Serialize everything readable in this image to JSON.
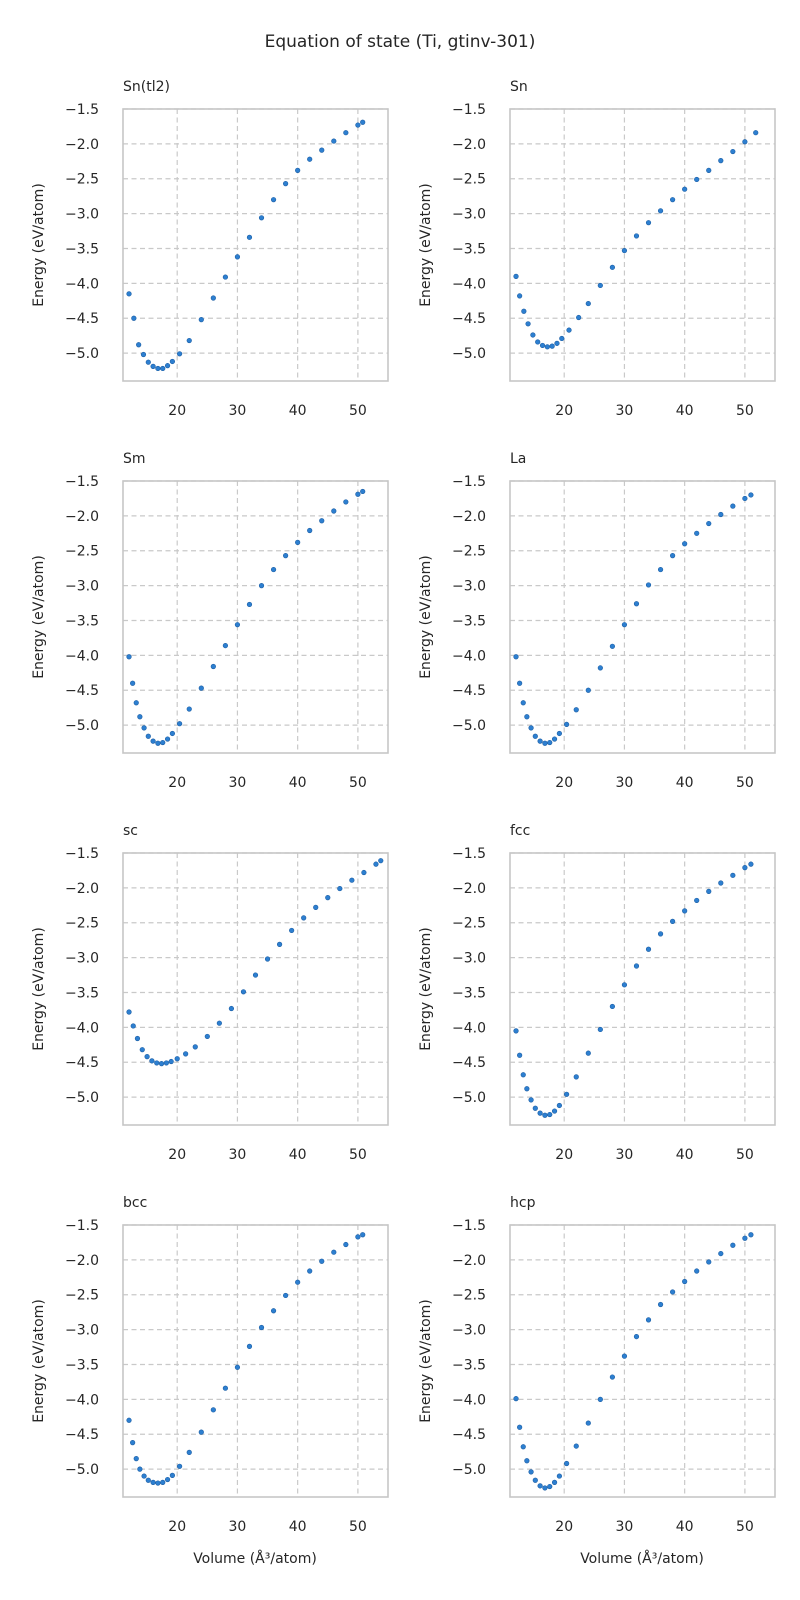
{
  "chart_data": {
    "title": "Equation of state (Ti, gtinv-301)",
    "type": "scatter",
    "xlabel": "Volume (Å³/atom)",
    "ylabel": "Energy (eV/atom)",
    "xlim": [
      11,
      55
    ],
    "ylim": [
      -5.4,
      -1.5
    ],
    "xticks": [
      20,
      30,
      40,
      50
    ],
    "yticks": [
      -1.5,
      -2.0,
      -2.5,
      -3.0,
      -3.5,
      -4.0,
      -4.5,
      -5.0
    ],
    "ytick_labels": [
      "−1.5",
      "−2.0",
      "−2.5",
      "−3.0",
      "−3.5",
      "−4.0",
      "−4.5",
      "−5.0"
    ],
    "grid": true,
    "point_color": "#2d7fd0",
    "panels": [
      {
        "title": "Sn(tl2)",
        "x": [
          12.0,
          12.8,
          13.6,
          14.4,
          15.2,
          16.0,
          16.8,
          17.6,
          18.4,
          19.2,
          20.4,
          22.0,
          24.0,
          26.0,
          28.0,
          30.0,
          32.0,
          34.0,
          36.0,
          38.0,
          40.0,
          42.0,
          44.0,
          46.0,
          48.0,
          50.0,
          50.8
        ],
        "y": [
          -4.15,
          -4.5,
          -4.88,
          -5.02,
          -5.13,
          -5.19,
          -5.22,
          -5.22,
          -5.18,
          -5.12,
          -5.01,
          -4.82,
          -4.52,
          -4.21,
          -3.91,
          -3.62,
          -3.34,
          -3.06,
          -2.8,
          -2.57,
          -2.38,
          -2.22,
          -2.09,
          -1.96,
          -1.84,
          -1.73,
          -1.69
        ]
      },
      {
        "title": "Sn",
        "x": [
          12.0,
          12.6,
          13.3,
          14.0,
          14.8,
          15.6,
          16.4,
          17.2,
          18.0,
          18.8,
          19.6,
          20.8,
          22.4,
          24.0,
          26.0,
          28.0,
          30.0,
          32.0,
          34.0,
          36.0,
          38.0,
          40.0,
          42.0,
          44.0,
          46.0,
          48.0,
          50.0,
          51.8
        ],
        "y": [
          -3.9,
          -4.18,
          -4.4,
          -4.58,
          -4.74,
          -4.84,
          -4.89,
          -4.91,
          -4.9,
          -4.86,
          -4.79,
          -4.67,
          -4.49,
          -4.29,
          -4.03,
          -3.77,
          -3.53,
          -3.32,
          -3.13,
          -2.96,
          -2.8,
          -2.65,
          -2.51,
          -2.38,
          -2.24,
          -2.11,
          -1.97,
          -1.84
        ]
      },
      {
        "title": "Sm",
        "x": [
          12.0,
          12.6,
          13.2,
          13.8,
          14.5,
          15.2,
          16.0,
          16.8,
          17.6,
          18.4,
          19.2,
          20.4,
          22.0,
          24.0,
          26.0,
          28.0,
          30.0,
          32.0,
          34.0,
          36.0,
          38.0,
          40.0,
          42.0,
          44.0,
          46.0,
          48.0,
          50.0,
          50.8
        ],
        "y": [
          -4.02,
          -4.4,
          -4.68,
          -4.88,
          -5.04,
          -5.16,
          -5.23,
          -5.26,
          -5.25,
          -5.2,
          -5.12,
          -4.98,
          -4.77,
          -4.47,
          -4.16,
          -3.86,
          -3.56,
          -3.27,
          -3.0,
          -2.77,
          -2.57,
          -2.38,
          -2.21,
          -2.07,
          -1.93,
          -1.8,
          -1.69,
          -1.65
        ]
      },
      {
        "title": "La",
        "x": [
          12.0,
          12.6,
          13.2,
          13.8,
          14.5,
          15.2,
          16.0,
          16.8,
          17.6,
          18.4,
          19.2,
          20.4,
          22.0,
          24.0,
          26.0,
          28.0,
          30.0,
          32.0,
          34.0,
          36.0,
          38.0,
          40.0,
          42.0,
          44.0,
          46.0,
          48.0,
          50.0,
          51.0
        ],
        "y": [
          -4.02,
          -4.4,
          -4.68,
          -4.88,
          -5.04,
          -5.16,
          -5.23,
          -5.26,
          -5.25,
          -5.2,
          -5.12,
          -4.99,
          -4.78,
          -4.5,
          -4.18,
          -3.87,
          -3.56,
          -3.26,
          -2.99,
          -2.77,
          -2.57,
          -2.4,
          -2.25,
          -2.11,
          -1.98,
          -1.86,
          -1.75,
          -1.7
        ]
      },
      {
        "title": "sc",
        "x": [
          12.0,
          12.7,
          13.4,
          14.2,
          15.0,
          15.8,
          16.6,
          17.4,
          18.2,
          19.0,
          20.0,
          21.4,
          23.0,
          25.0,
          27.0,
          29.0,
          31.0,
          33.0,
          35.0,
          37.0,
          39.0,
          41.0,
          43.0,
          45.0,
          47.0,
          49.0,
          51.0,
          53.0,
          53.8
        ],
        "y": [
          -3.78,
          -3.98,
          -4.16,
          -4.32,
          -4.42,
          -4.48,
          -4.51,
          -4.52,
          -4.51,
          -4.49,
          -4.45,
          -4.38,
          -4.28,
          -4.13,
          -3.94,
          -3.73,
          -3.49,
          -3.25,
          -3.02,
          -2.81,
          -2.61,
          -2.43,
          -2.28,
          -2.14,
          -2.01,
          -1.89,
          -1.78,
          -1.66,
          -1.61
        ]
      },
      {
        "title": "fcc",
        "x": [
          12.0,
          12.6,
          13.2,
          13.8,
          14.5,
          15.2,
          16.0,
          16.8,
          17.6,
          18.4,
          19.2,
          20.4,
          22.0,
          24.0,
          26.0,
          28.0,
          30.0,
          32.0,
          34.0,
          36.0,
          38.0,
          40.0,
          42.0,
          44.0,
          46.0,
          48.0,
          50.0,
          51.0
        ],
        "y": [
          -4.05,
          -4.4,
          -4.68,
          -4.88,
          -5.04,
          -5.16,
          -5.23,
          -5.26,
          -5.25,
          -5.2,
          -5.12,
          -4.96,
          -4.71,
          -4.37,
          -4.03,
          -3.7,
          -3.39,
          -3.12,
          -2.88,
          -2.66,
          -2.48,
          -2.33,
          -2.18,
          -2.05,
          -1.93,
          -1.82,
          -1.71,
          -1.66
        ]
      },
      {
        "title": "bcc",
        "x": [
          12.0,
          12.6,
          13.2,
          13.8,
          14.5,
          15.2,
          16.0,
          16.8,
          17.6,
          18.4,
          19.2,
          20.4,
          22.0,
          24.0,
          26.0,
          28.0,
          30.0,
          32.0,
          34.0,
          36.0,
          38.0,
          40.0,
          42.0,
          44.0,
          46.0,
          48.0,
          50.0,
          50.8
        ],
        "y": [
          -4.3,
          -4.62,
          -4.85,
          -5.0,
          -5.1,
          -5.16,
          -5.19,
          -5.2,
          -5.19,
          -5.15,
          -5.09,
          -4.96,
          -4.76,
          -4.47,
          -4.15,
          -3.84,
          -3.54,
          -3.24,
          -2.97,
          -2.73,
          -2.51,
          -2.32,
          -2.16,
          -2.02,
          -1.89,
          -1.78,
          -1.67,
          -1.64
        ]
      },
      {
        "title": "hcp",
        "x": [
          12.0,
          12.6,
          13.2,
          13.8,
          14.5,
          15.2,
          16.0,
          16.8,
          17.6,
          18.4,
          19.2,
          20.4,
          22.0,
          24.0,
          26.0,
          28.0,
          30.0,
          32.0,
          34.0,
          36.0,
          38.0,
          40.0,
          42.0,
          44.0,
          46.0,
          48.0,
          50.0,
          51.0
        ],
        "y": [
          -3.99,
          -4.4,
          -4.68,
          -4.88,
          -5.04,
          -5.16,
          -5.24,
          -5.27,
          -5.25,
          -5.19,
          -5.1,
          -4.92,
          -4.67,
          -4.34,
          -4.0,
          -3.68,
          -3.38,
          -3.1,
          -2.86,
          -2.64,
          -2.46,
          -2.31,
          -2.16,
          -2.03,
          -1.91,
          -1.79,
          -1.69,
          -1.64
        ]
      }
    ]
  }
}
